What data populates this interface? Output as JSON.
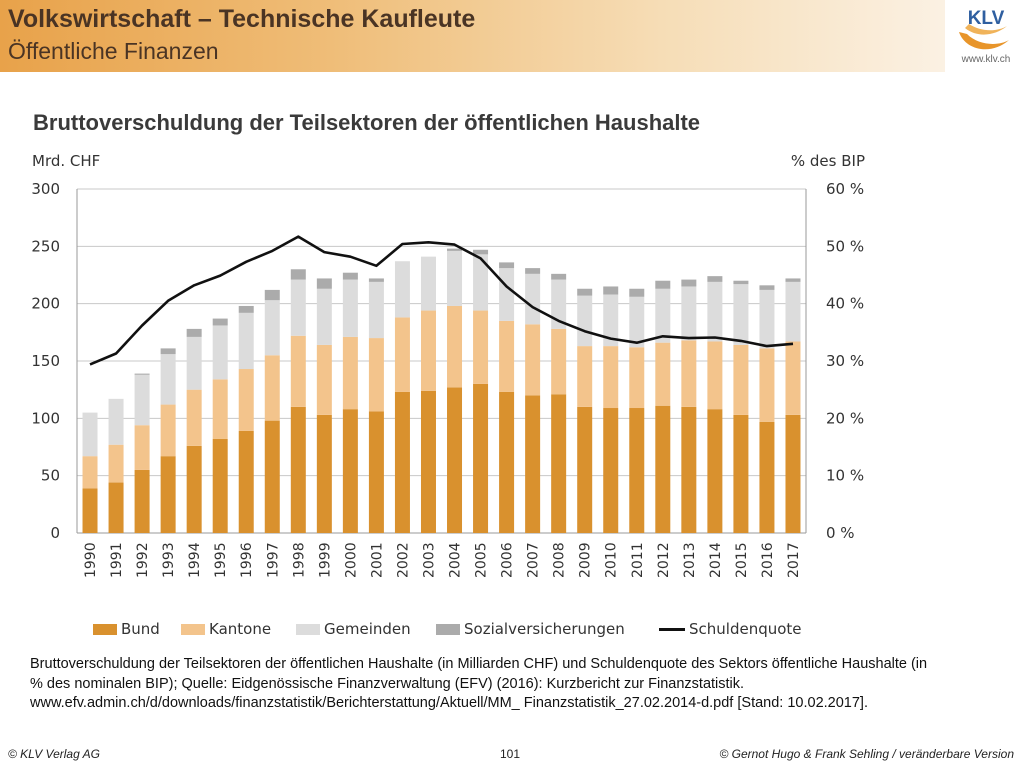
{
  "header": {
    "title": "Volkswirtschaft – Technische Kaufleute",
    "subtitle": "Öffentliche Finanzen",
    "logo_text": "KLV",
    "logo_url": "www.klv.ch"
  },
  "slide_title": "Bruttoverschuldung der Teilsektoren der öffentlichen Haushalte",
  "caption": "Bruttoverschuldung der Teilsektoren der öffentlichen Haushalte (in Milliarden CHF) und Schuldenquote des Sektors öffentliche Haushalte (in % des nominalen BIP); Quelle: Eidgenössische Finanzverwaltung (EFV) (2016): Kurzbericht zur Finanzstatistik. www.efv.admin.ch/d/downloads/finanzstatistik/Berichterstattung/Aktuell/MM_ Finanzstatistik_27.02.2014-d.pdf [Stand: 10.02.2017].",
  "footer": {
    "left": "© KLV Verlag AG",
    "page": "101",
    "right": "© Gernot Hugo & Frank Sehling / veränderbare Version"
  },
  "colors": {
    "bund": "#d9912e",
    "kantone": "#f3c48c",
    "gemeinden": "#dcdcdc",
    "sozial": "#ababab",
    "line": "#111111",
    "grid": "#c8c8c8",
    "axis_text": "#333333"
  },
  "chart_data": {
    "type": "bar",
    "stacked": true,
    "ylabel_left": "Mrd. CHF",
    "ylabel_right": "% des BIP",
    "ylim": [
      0,
      300
    ],
    "y2lim": [
      0,
      60
    ],
    "yticks": [
      "0",
      "50",
      "100",
      "150",
      "200",
      "250",
      "300"
    ],
    "y2ticks": [
      "0 %",
      "10 %",
      "20 %",
      "30 %",
      "40 %",
      "50 %",
      "60 %"
    ],
    "grid": true,
    "legend_position": "bottom",
    "categories": [
      "1990",
      "1991",
      "1992",
      "1993",
      "1994",
      "1995",
      "1996",
      "1997",
      "1998",
      "1999",
      "2000",
      "2001",
      "2002",
      "2003",
      "2004",
      "2005",
      "2006",
      "2007",
      "2008",
      "2009",
      "2010",
      "2011",
      "2012",
      "2013",
      "2014",
      "2015",
      "2016",
      "2017"
    ],
    "series": [
      {
        "name": "Bund",
        "values": [
          39,
          44,
          55,
          67,
          76,
          82,
          89,
          98,
          110,
          103,
          108,
          106,
          123,
          124,
          127,
          130,
          123,
          120,
          121,
          110,
          109,
          109,
          111,
          110,
          108,
          103,
          97,
          103
        ]
      },
      {
        "name": "Kantone",
        "values": [
          28,
          33,
          39,
          45,
          49,
          52,
          54,
          57,
          62,
          61,
          63,
          64,
          65,
          70,
          71,
          64,
          62,
          62,
          57,
          53,
          54,
          53,
          55,
          58,
          59,
          61,
          64,
          64
        ]
      },
      {
        "name": "Gemeinden",
        "values": [
          38,
          40,
          44,
          44,
          46,
          47,
          49,
          48,
          49,
          49,
          50,
          49,
          49,
          47,
          48,
          49,
          46,
          44,
          43,
          44,
          45,
          44,
          47,
          47,
          52,
          53,
          51,
          52
        ]
      },
      {
        "name": "Sozialversicherungen",
        "values": [
          0,
          0,
          1,
          5,
          7,
          6,
          6,
          9,
          9,
          9,
          6,
          3,
          0,
          0,
          2,
          4,
          5,
          5,
          5,
          6,
          7,
          7,
          7,
          6,
          5,
          3,
          4,
          3
        ]
      }
    ],
    "line_series": {
      "name": "Schuldenquote",
      "axis": "right",
      "values": [
        29.4,
        31.3,
        36.2,
        40.5,
        43.2,
        44.9,
        47.3,
        49.2,
        51.7,
        49,
        48.2,
        46.6,
        50.4,
        50.7,
        50.3,
        47.9,
        43,
        39.4,
        37,
        35.2,
        33.9,
        33.2,
        34.3,
        34,
        34.1,
        33.5,
        32.6,
        33
      ]
    }
  },
  "legend": [
    {
      "label": "Bund",
      "kind": "bar",
      "color": "#d9912e"
    },
    {
      "label": "Kantone",
      "kind": "bar",
      "color": "#f3c48c"
    },
    {
      "label": "Gemeinden",
      "kind": "bar",
      "color": "#dcdcdc"
    },
    {
      "label": "Sozialversicherungen",
      "kind": "bar",
      "color": "#ababab"
    },
    {
      "label": "Schuldenquote",
      "kind": "line",
      "color": "#111111"
    }
  ]
}
